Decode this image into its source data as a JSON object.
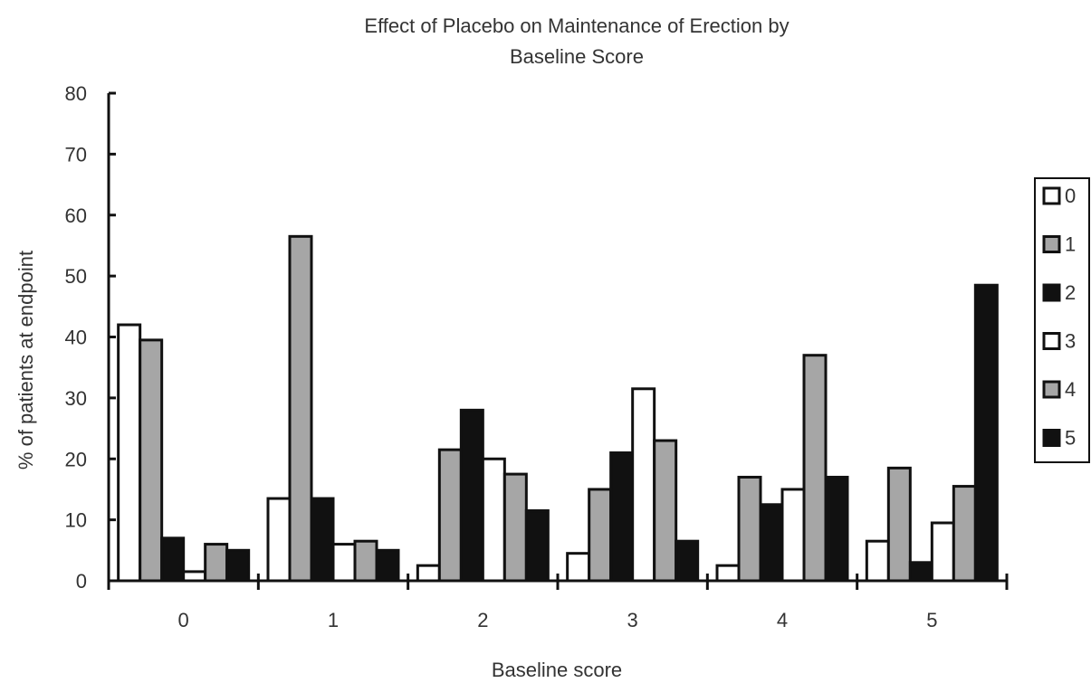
{
  "chart_data": {
    "type": "bar",
    "title": "Effect of Placebo on Maintenance of Erection by",
    "subtitle": "Baseline Score",
    "xlabel": "Baseline score",
    "ylabel": "% of patients at endpoint",
    "ylim": [
      0,
      80
    ],
    "yticks": [
      "0",
      "10",
      "20",
      "30",
      "40",
      "50",
      "60",
      "70",
      "80"
    ],
    "categories": [
      "0",
      "1",
      "2",
      "3",
      "4",
      "5"
    ],
    "grid": false,
    "legend_position": "right",
    "series": [
      {
        "name": "0",
        "color": "#ffffff",
        "values": [
          42,
          13.5,
          2.5,
          4.5,
          2.5,
          6.5
        ]
      },
      {
        "name": "1",
        "color": "#a6a6a6",
        "values": [
          39.5,
          56.5,
          21.5,
          15,
          17,
          18.5
        ]
      },
      {
        "name": "2",
        "color": "#111111",
        "values": [
          7,
          13.5,
          28,
          21,
          12.5,
          3
        ]
      },
      {
        "name": "3",
        "color": "#ffffff",
        "values": [
          1.5,
          6,
          20,
          31.5,
          15,
          9.5
        ]
      },
      {
        "name": "4",
        "color": "#a6a6a6",
        "values": [
          6,
          6.5,
          17.5,
          23,
          37,
          15.5
        ]
      },
      {
        "name": "5",
        "color": "#111111",
        "values": [
          5,
          5,
          11.5,
          6.5,
          17,
          48.5
        ]
      }
    ]
  }
}
